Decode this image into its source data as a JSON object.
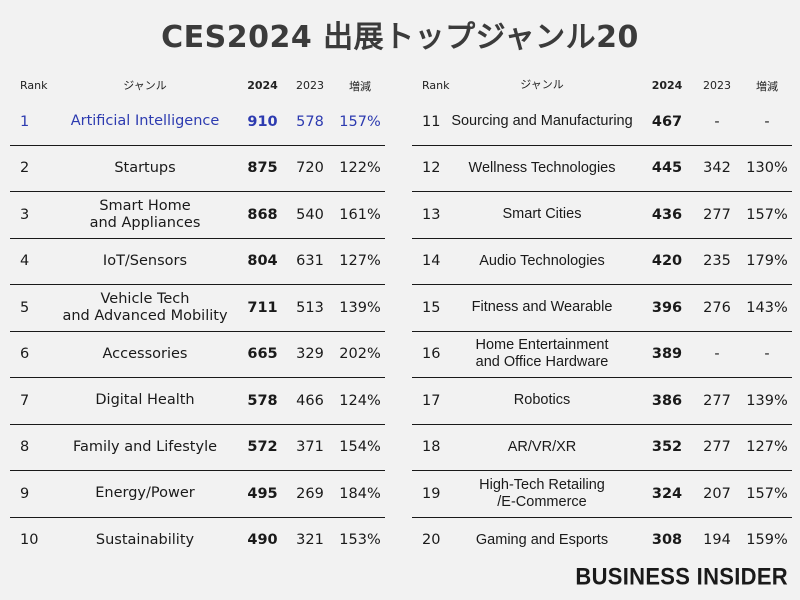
{
  "title": "CES2024 出展トップジャンル20",
  "headers": {
    "rank": "Rank",
    "genre": "ジャンル",
    "y2024": "2024",
    "y2023": "2023",
    "change": "増減"
  },
  "left_rows": [
    {
      "rank": "1",
      "genre": "Artificial Intelligence",
      "v2024": "910",
      "v2023": "578",
      "change": "157%",
      "highlight": true
    },
    {
      "rank": "2",
      "genre": "Startups",
      "v2024": "875",
      "v2023": "720",
      "change": "122%"
    },
    {
      "rank": "3",
      "genre": "Smart Home\nand Appliances",
      "v2024": "868",
      "v2023": "540",
      "change": "161%"
    },
    {
      "rank": "4",
      "genre": "IoT/Sensors",
      "v2024": "804",
      "v2023": "631",
      "change": "127%"
    },
    {
      "rank": "5",
      "genre": "Vehicle Tech\nand Advanced Mobility",
      "v2024": "711",
      "v2023": "513",
      "change": "139%"
    },
    {
      "rank": "6",
      "genre": "Accessories",
      "v2024": "665",
      "v2023": "329",
      "change": "202%"
    },
    {
      "rank": "7",
      "genre": "Digital Health",
      "v2024": "578",
      "v2023": "466",
      "change": "124%"
    },
    {
      "rank": "8",
      "genre": "Family and Lifestyle",
      "v2024": "572",
      "v2023": "371",
      "change": "154%"
    },
    {
      "rank": "9",
      "genre": "Energy/Power",
      "v2024": "495",
      "v2023": "269",
      "change": "184%"
    },
    {
      "rank": "10",
      "genre": "Sustainability",
      "v2024": "490",
      "v2023": "321",
      "change": "153%"
    }
  ],
  "right_rows": [
    {
      "rank": "11",
      "genre": "Sourcing and Manufacturing",
      "v2024": "467",
      "v2023": "-",
      "change": "-"
    },
    {
      "rank": "12",
      "genre": "Wellness Technologies",
      "v2024": "445",
      "v2023": "342",
      "change": "130%"
    },
    {
      "rank": "13",
      "genre": "Smart Cities",
      "v2024": "436",
      "v2023": "277",
      "change": "157%"
    },
    {
      "rank": "14",
      "genre": "Audio Technologies",
      "v2024": "420",
      "v2023": "235",
      "change": "179%"
    },
    {
      "rank": "15",
      "genre": "Fitness and Wearable",
      "v2024": "396",
      "v2023": "276",
      "change": "143%"
    },
    {
      "rank": "16",
      "genre": "Home Entertainment\nand Office Hardware",
      "v2024": "389",
      "v2023": "-",
      "change": "-"
    },
    {
      "rank": "17",
      "genre": "Robotics",
      "v2024": "386",
      "v2023": "277",
      "change": "139%"
    },
    {
      "rank": "18",
      "genre": "AR/VR/XR",
      "v2024": "352",
      "v2023": "277",
      "change": "127%"
    },
    {
      "rank": "19",
      "genre": "High-Tech Retailing\n/E-Commerce",
      "v2024": "324",
      "v2023": "207",
      "change": "157%"
    },
    {
      "rank": "20",
      "genre": "Gaming and Esports",
      "v2024": "308",
      "v2023": "194",
      "change": "159%"
    }
  ],
  "logo": "BUSINESS INSIDER",
  "colors": {
    "highlight": "#2d3bb0",
    "title": "#3b3b3b",
    "background": "#f2f2f2"
  }
}
